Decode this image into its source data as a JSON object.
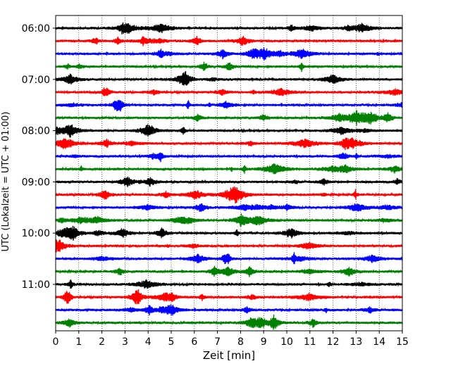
{
  "chart_data": {
    "type": "line",
    "title": "",
    "xlabel": "Zeit  [min]",
    "ylabel": "UTC (Lokalzeit = UTC + 01:00)",
    "xlim": [
      0,
      15
    ],
    "x_ticks": [
      "0",
      "1",
      "2",
      "3",
      "4",
      "5",
      "6",
      "7",
      "8",
      "9",
      "10",
      "11",
      "12",
      "13",
      "14",
      "15"
    ],
    "y_ticks": [
      "06:00",
      "07:00",
      "08:00",
      "09:00",
      "10:00",
      "11:00"
    ],
    "grid": "vertical dotted",
    "legend": "none",
    "trace_colors": [
      "#000000",
      "#ff0000",
      "#0000ff",
      "#008000"
    ],
    "traces": [
      {
        "start": "06:00",
        "color": "#000000"
      },
      {
        "start": "06:15",
        "color": "#ff0000"
      },
      {
        "start": "06:30",
        "color": "#0000ff"
      },
      {
        "start": "06:45",
        "color": "#008000"
      },
      {
        "start": "07:00",
        "color": "#000000"
      },
      {
        "start": "07:15",
        "color": "#ff0000"
      },
      {
        "start": "07:30",
        "color": "#0000ff"
      },
      {
        "start": "07:45",
        "color": "#008000"
      },
      {
        "start": "08:00",
        "color": "#000000"
      },
      {
        "start": "08:15",
        "color": "#ff0000"
      },
      {
        "start": "08:30",
        "color": "#0000ff"
      },
      {
        "start": "08:45",
        "color": "#008000"
      },
      {
        "start": "09:00",
        "color": "#000000"
      },
      {
        "start": "09:15",
        "color": "#ff0000"
      },
      {
        "start": "09:30",
        "color": "#0000ff"
      },
      {
        "start": "09:45",
        "color": "#008000"
      },
      {
        "start": "10:00",
        "color": "#000000"
      },
      {
        "start": "10:15",
        "color": "#ff0000"
      },
      {
        "start": "10:30",
        "color": "#0000ff"
      },
      {
        "start": "10:45",
        "color": "#008000"
      },
      {
        "start": "11:00",
        "color": "#000000"
      },
      {
        "start": "11:15",
        "color": "#ff0000"
      },
      {
        "start": "11:30",
        "color": "#0000ff"
      },
      {
        "start": "11:45",
        "color": "#008000"
      }
    ]
  }
}
